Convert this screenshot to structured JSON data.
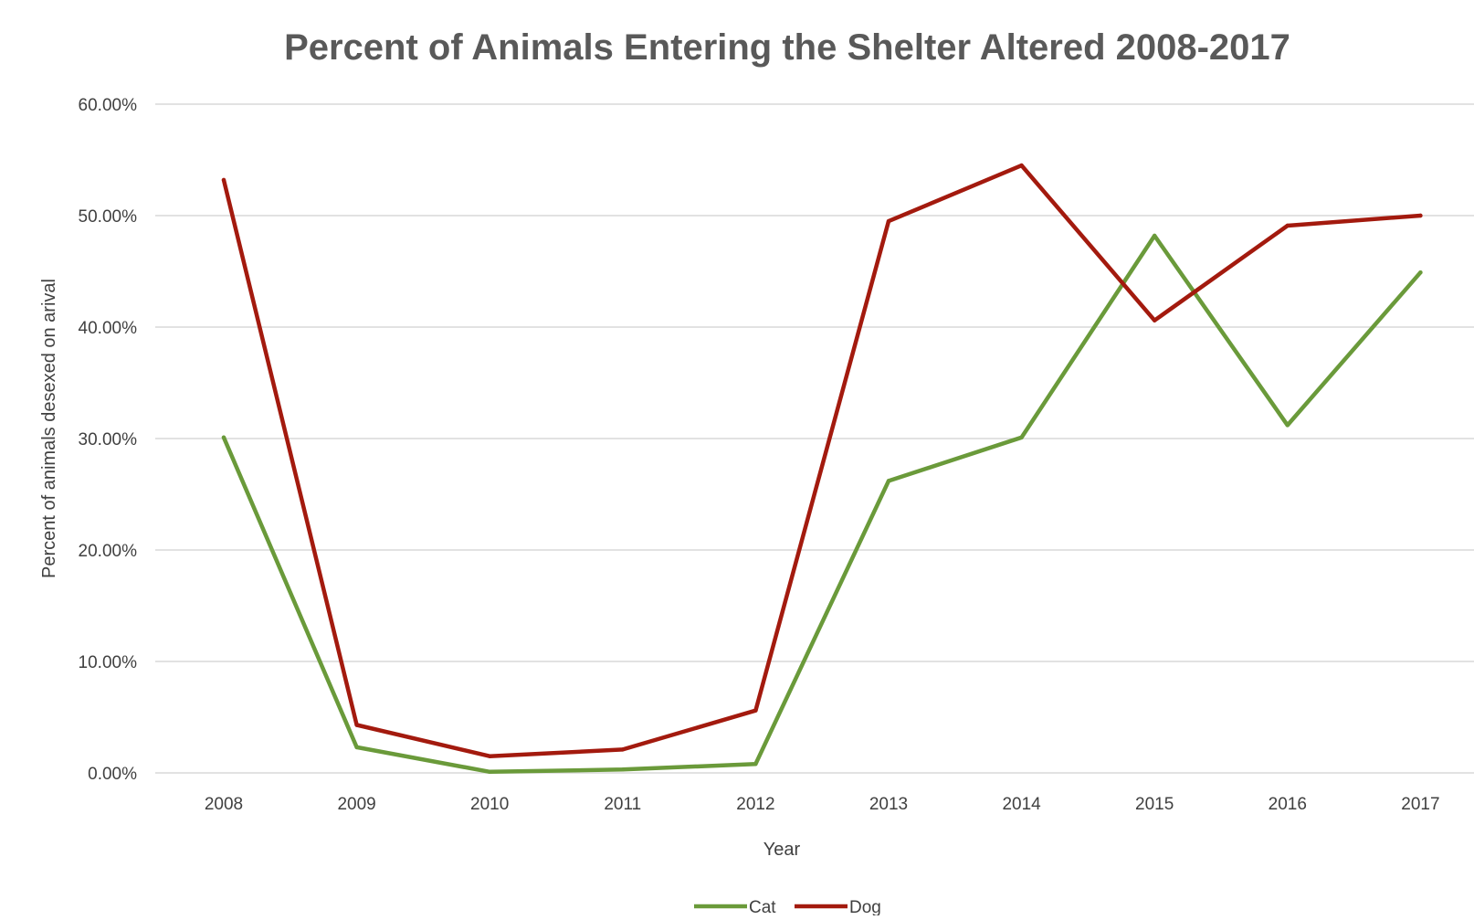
{
  "chart_data": {
    "type": "line",
    "title": "Percent of Animals Entering the Shelter Altered 2008-2017",
    "xlabel": "Year",
    "ylabel": "Percent of animals desexed on arival",
    "categories": [
      "2008",
      "2009",
      "2010",
      "2011",
      "2012",
      "2013",
      "2014",
      "2015",
      "2016",
      "2017"
    ],
    "ylim": [
      0,
      0.6
    ],
    "yticks": [
      0,
      0.1,
      0.2,
      0.3,
      0.4,
      0.5,
      0.6
    ],
    "ytick_labels": [
      "0.00%",
      "10.00%",
      "20.00%",
      "30.00%",
      "40.00%",
      "50.00%",
      "60.00%"
    ],
    "grid": true,
    "legend_position": "bottom",
    "series": [
      {
        "name": "Cat",
        "color": "#6a9a3a",
        "values": [
          0.301,
          0.023,
          0.001,
          0.003,
          0.008,
          0.262,
          0.301,
          0.482,
          0.312,
          0.449
        ]
      },
      {
        "name": "Dog",
        "color": "#a31a0e",
        "values": [
          0.532,
          0.043,
          0.015,
          0.021,
          0.056,
          0.495,
          0.545,
          0.406,
          0.491,
          0.5
        ]
      }
    ]
  }
}
